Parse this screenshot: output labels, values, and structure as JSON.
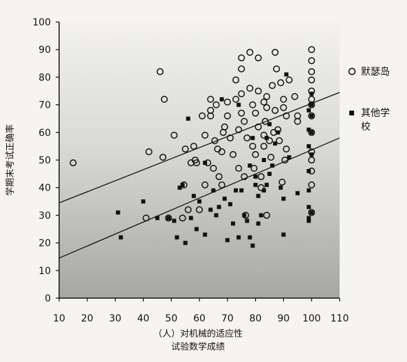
{
  "chart_data": {
    "type": "scatter",
    "xlabel": [
      "（人）对机械的适应性",
      "试验数学成绩"
    ],
    "ylabel": "学期末考试正确率",
    "xlim": [
      10,
      110
    ],
    "ylim": [
      0,
      100
    ],
    "xticks": [
      10,
      20,
      30,
      40,
      50,
      60,
      70,
      80,
      90,
      100,
      110
    ],
    "yticks": [
      0,
      10,
      20,
      30,
      40,
      50,
      60,
      70,
      80,
      90,
      100
    ],
    "grid": false,
    "legend_position": "right",
    "series": [
      {
        "name": "默瑟岛",
        "marker": "open-circle",
        "color": "#111111",
        "points": [
          [
            15,
            49
          ],
          [
            41,
            29
          ],
          [
            42,
            53
          ],
          [
            46,
            82
          ],
          [
            47,
            51
          ],
          [
            47.5,
            72
          ],
          [
            49,
            29
          ],
          [
            51,
            59
          ],
          [
            54,
            29
          ],
          [
            55,
            54
          ],
          [
            54.5,
            41
          ],
          [
            56,
            32
          ],
          [
            57,
            49
          ],
          [
            58,
            55
          ],
          [
            58.5,
            50
          ],
          [
            59,
            49
          ],
          [
            60,
            32
          ],
          [
            61,
            66
          ],
          [
            62,
            41
          ],
          [
            62,
            59
          ],
          [
            63,
            49
          ],
          [
            64,
            72
          ],
          [
            64,
            68
          ],
          [
            64,
            66
          ],
          [
            65,
            47
          ],
          [
            65.5,
            57
          ],
          [
            66,
            70
          ],
          [
            66.5,
            54
          ],
          [
            67,
            44
          ],
          [
            68,
            53
          ],
          [
            68,
            41
          ],
          [
            68.5,
            60
          ],
          [
            69,
            62
          ],
          [
            70,
            71
          ],
          [
            70,
            66
          ],
          [
            71,
            58
          ],
          [
            72,
            52
          ],
          [
            73,
            79
          ],
          [
            73,
            72
          ],
          [
            74,
            61
          ],
          [
            74,
            47
          ],
          [
            75,
            87
          ],
          [
            75,
            83
          ],
          [
            75,
            74
          ],
          [
            75,
            67
          ],
          [
            76,
            64
          ],
          [
            76,
            44
          ],
          [
            76.5,
            30
          ],
          [
            77,
            58
          ],
          [
            78,
            89
          ],
          [
            78,
            76
          ],
          [
            79,
            70
          ],
          [
            79,
            55
          ],
          [
            79.5,
            47
          ],
          [
            80,
            67
          ],
          [
            80,
            52
          ],
          [
            81,
            87
          ],
          [
            81,
            75
          ],
          [
            81,
            62
          ],
          [
            82,
            44
          ],
          [
            82,
            40
          ],
          [
            83,
            71
          ],
          [
            83,
            59
          ],
          [
            83,
            55
          ],
          [
            83.5,
            64
          ],
          [
            84,
            73
          ],
          [
            84,
            69
          ],
          [
            84,
            30
          ],
          [
            85,
            57
          ],
          [
            85.5,
            51
          ],
          [
            86,
            77
          ],
          [
            86.5,
            60
          ],
          [
            87,
            89
          ],
          [
            87.5,
            83
          ],
          [
            87,
            68
          ],
          [
            88,
            61
          ],
          [
            88.5,
            57
          ],
          [
            89,
            78
          ],
          [
            89.5,
            42
          ],
          [
            90,
            72
          ],
          [
            90,
            69
          ],
          [
            90.5,
            50
          ],
          [
            91,
            66
          ],
          [
            91,
            54
          ],
          [
            92,
            79
          ],
          [
            94,
            73
          ],
          [
            95,
            66
          ],
          [
            95,
            64
          ],
          [
            100,
            90
          ],
          [
            100,
            86
          ],
          [
            100,
            82
          ],
          [
            100,
            79
          ],
          [
            100,
            75
          ],
          [
            100,
            72
          ],
          [
            100,
            70
          ],
          [
            100,
            66
          ],
          [
            100,
            60
          ],
          [
            100,
            53
          ],
          [
            100,
            50
          ],
          [
            100,
            46
          ],
          [
            100,
            41
          ],
          [
            100,
            31
          ]
        ]
      },
      {
        "name": "其他学\n校",
        "marker": "filled-square",
        "color": "#111111",
        "points": [
          [
            31,
            31
          ],
          [
            32,
            22
          ],
          [
            40,
            35
          ],
          [
            45,
            29
          ],
          [
            49,
            29
          ],
          [
            51,
            28
          ],
          [
            52,
            22
          ],
          [
            53,
            40
          ],
          [
            54,
            41
          ],
          [
            55,
            20
          ],
          [
            56,
            65
          ],
          [
            57,
            29
          ],
          [
            58,
            37
          ],
          [
            59,
            25
          ],
          [
            60,
            35
          ],
          [
            62,
            23
          ],
          [
            62,
            49
          ],
          [
            64,
            32
          ],
          [
            65,
            39
          ],
          [
            66,
            30
          ],
          [
            67,
            33
          ],
          [
            68,
            72
          ],
          [
            69,
            36
          ],
          [
            70,
            21
          ],
          [
            71,
            34
          ],
          [
            72,
            27
          ],
          [
            73,
            39
          ],
          [
            74,
            70
          ],
          [
            74,
            22
          ],
          [
            75,
            39
          ],
          [
            76,
            30
          ],
          [
            77,
            28
          ],
          [
            78,
            22
          ],
          [
            78,
            48
          ],
          [
            79,
            19
          ],
          [
            79,
            58
          ],
          [
            80,
            41
          ],
          [
            80,
            44
          ],
          [
            81,
            37
          ],
          [
            81,
            27
          ],
          [
            82,
            30
          ],
          [
            83,
            39
          ],
          [
            83,
            50
          ],
          [
            84,
            41
          ],
          [
            84,
            58
          ],
          [
            85,
            45
          ],
          [
            85,
            63
          ],
          [
            86,
            48
          ],
          [
            87,
            56
          ],
          [
            88,
            60
          ],
          [
            89,
            40
          ],
          [
            90,
            23
          ],
          [
            90,
            36
          ],
          [
            91,
            81
          ],
          [
            92,
            51
          ],
          [
            95,
            38
          ],
          [
            99,
            68
          ],
          [
            99,
            61
          ],
          [
            99,
            55
          ],
          [
            99,
            46
          ],
          [
            99,
            39
          ],
          [
            99,
            33
          ],
          [
            99,
            29
          ],
          [
            99,
            28
          ],
          [
            100,
            31
          ],
          [
            100,
            52
          ],
          [
            100,
            60
          ],
          [
            100,
            66
          ],
          [
            100,
            70
          ],
          [
            100,
            74
          ]
        ]
      }
    ],
    "regression_lines": [
      {
        "name": "默瑟岛",
        "x": [
          10,
          110
        ],
        "y": [
          34.5,
          74.5
        ]
      },
      {
        "name": "其他学校",
        "x": [
          10,
          110
        ],
        "y": [
          14.5,
          58
        ]
      }
    ]
  }
}
